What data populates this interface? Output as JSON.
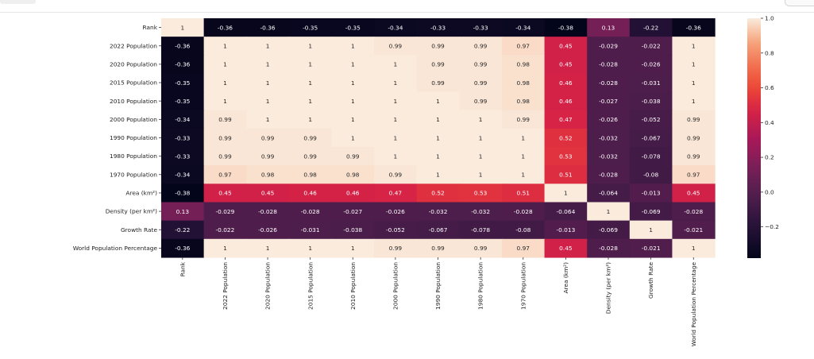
{
  "chart_data": {
    "type": "heatmap",
    "colormap": "rocket",
    "rows": [
      "Rank",
      "2022 Population",
      "2020 Population",
      "2015 Population",
      "2010 Population",
      "2000 Population",
      "1990 Population",
      "1980 Population",
      "1970 Population",
      "Area (km²)",
      "Density (per km²)",
      "Growth Rate",
      "World Population Percentage"
    ],
    "columns": [
      "Rank",
      "2022 Population",
      "2020 Population",
      "2015 Population",
      "2010 Population",
      "2000 Population",
      "1990 Population",
      "1980 Population",
      "1970 Population",
      "Area (km²)",
      "Density (per km²)",
      "Growth Rate",
      "World Population Percentage"
    ],
    "values": [
      [
        1,
        -0.36,
        -0.36,
        -0.35,
        -0.35,
        -0.34,
        -0.33,
        -0.33,
        -0.34,
        -0.38,
        0.13,
        -0.22,
        -0.36
      ],
      [
        -0.36,
        1,
        1,
        1,
        1,
        0.99,
        0.99,
        0.99,
        0.97,
        0.45,
        -0.029,
        -0.022,
        1
      ],
      [
        -0.36,
        1,
        1,
        1,
        1,
        1,
        0.99,
        0.99,
        0.98,
        0.45,
        -0.028,
        -0.026,
        1
      ],
      [
        -0.35,
        1,
        1,
        1,
        1,
        1,
        0.99,
        0.99,
        0.98,
        0.46,
        -0.028,
        -0.031,
        1
      ],
      [
        -0.35,
        1,
        1,
        1,
        1,
        1,
        1,
        0.99,
        0.98,
        0.46,
        -0.027,
        -0.038,
        1
      ],
      [
        -0.34,
        0.99,
        1,
        1,
        1,
        1,
        1,
        1,
        0.99,
        0.47,
        -0.026,
        -0.052,
        0.99
      ],
      [
        -0.33,
        0.99,
        0.99,
        0.99,
        1,
        1,
        1,
        1,
        1,
        0.52,
        -0.032,
        -0.067,
        0.99
      ],
      [
        -0.33,
        0.99,
        0.99,
        0.99,
        0.99,
        1,
        1,
        1,
        1,
        0.53,
        -0.032,
        -0.078,
        0.99
      ],
      [
        -0.34,
        0.97,
        0.98,
        0.98,
        0.98,
        0.99,
        1,
        1,
        1,
        0.51,
        -0.028,
        -0.08,
        0.97
      ],
      [
        -0.38,
        0.45,
        0.45,
        0.46,
        0.46,
        0.47,
        0.52,
        0.53,
        0.51,
        1,
        -0.064,
        -0.013,
        0.45
      ],
      [
        0.13,
        -0.029,
        -0.028,
        -0.028,
        -0.027,
        -0.026,
        -0.032,
        -0.032,
        -0.028,
        -0.064,
        1,
        -0.069,
        -0.028
      ],
      [
        -0.22,
        -0.022,
        -0.026,
        -0.031,
        -0.038,
        -0.052,
        -0.067,
        -0.078,
        -0.08,
        -0.013,
        -0.069,
        1,
        -0.021
      ],
      [
        -0.36,
        1,
        1,
        1,
        1,
        0.99,
        0.99,
        0.99,
        0.97,
        0.45,
        -0.028,
        -0.021,
        1
      ]
    ],
    "vmin": -0.38,
    "vmax": 1,
    "colorbar_ticks": [
      1.0,
      0.8,
      0.6,
      0.4,
      0.2,
      0.0,
      -0.2
    ],
    "colorbar_tick_labels": [
      "1.0",
      "0.8",
      "0.6",
      "0.4",
      "0.2",
      "0.0",
      "−0.2"
    ],
    "annotations": true,
    "grid": false,
    "title": "",
    "xlabel": "",
    "ylabel": ""
  }
}
